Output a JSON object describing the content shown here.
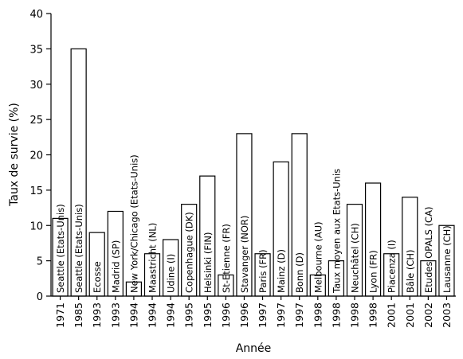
{
  "chart_data": {
    "type": "bar",
    "xlabel": "Année",
    "ylabel": "Taux de survie (%)",
    "ylim": [
      0,
      40
    ],
    "yticks": [
      0,
      5,
      10,
      15,
      20,
      25,
      30,
      35,
      40
    ],
    "grid": false,
    "legend": "none",
    "bar_fill": "#ffffff",
    "bar_stroke": "#000000",
    "categories": [
      "1971",
      "1985",
      "1993",
      "1993",
      "1994",
      "1994",
      "1994",
      "1995",
      "1995",
      "1996",
      "1996",
      "1997",
      "1997",
      "1997",
      "1998",
      "1998",
      "1998",
      "1998",
      "2001",
      "2001",
      "2002",
      "2003"
    ],
    "labels": [
      "Seattle (Etats-Unis)",
      "Seattle (Etats-Unis)",
      "Ecosse",
      "Madrid (SP)",
      "New York/Chicago (Etats-Unis)",
      "Maastricht (NL)",
      "Udine (I)",
      "Copenhague (DK)",
      "Helsinki (FIN)",
      "St-Etienne (FR)",
      "Stavanger (NOR)",
      "Paris (FR)",
      "Mainz (D)",
      "Bonn (D)",
      "Melbourne (AU)",
      "Taux moyen aux Etats-Unis",
      "Neuchâtel (CH)",
      "Lyon (FR)",
      "Piacenza (I)",
      "Bâle (CH)",
      "Etudes OPALS (CA)",
      "Lausanne (CH)"
    ],
    "values": [
      11,
      35,
      9,
      12,
      2,
      6,
      8,
      13,
      17,
      3,
      23,
      6,
      19,
      23,
      3,
      5,
      13,
      16,
      6,
      14,
      5,
      10
    ]
  }
}
